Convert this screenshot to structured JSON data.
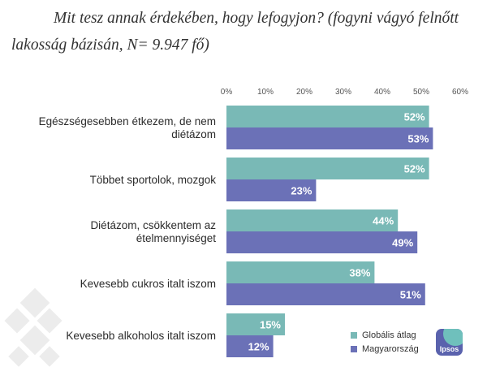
{
  "title": "Mit tesz annak érdekében, hogy lefogyjon? (fogyni vágyó felnőtt lakosság bázisán, N= 9.947 fő)",
  "colors": {
    "series1": "#79b9b6",
    "series2": "#6b71b7"
  },
  "logo": {
    "text": "Ipsos"
  },
  "chart_data": {
    "type": "bar",
    "orientation": "horizontal",
    "categories": [
      [
        "Egészségesebben étkezem, de nem",
        "diétázom"
      ],
      [
        "Többet sportolok, mozgok"
      ],
      [
        "Diétázom, csökkentem az",
        "ételmennyiséget"
      ],
      [
        "Kevesebb cukros italt iszom"
      ],
      [
        "Kevesebb alkoholos italt iszom"
      ]
    ],
    "series": [
      {
        "name": "Globális átlag",
        "values": [
          52,
          52,
          44,
          38,
          15
        ],
        "color": "#79b9b6"
      },
      {
        "name": "Magyarország",
        "values": [
          53,
          23,
          49,
          51,
          12
        ],
        "color": "#6b71b7"
      }
    ],
    "value_labels": [
      [
        "52%",
        "52%",
        "44%",
        "38%",
        "15%"
      ],
      [
        "53%",
        "23%",
        "49%",
        "51%",
        "12%"
      ]
    ],
    "x_ticks": [
      "0%",
      "10%",
      "20%",
      "30%",
      "40%",
      "50%",
      "60%"
    ],
    "xlim": [
      0,
      60
    ],
    "x_axis_position": "top",
    "legend_position": "bottom-right",
    "grid": false
  }
}
